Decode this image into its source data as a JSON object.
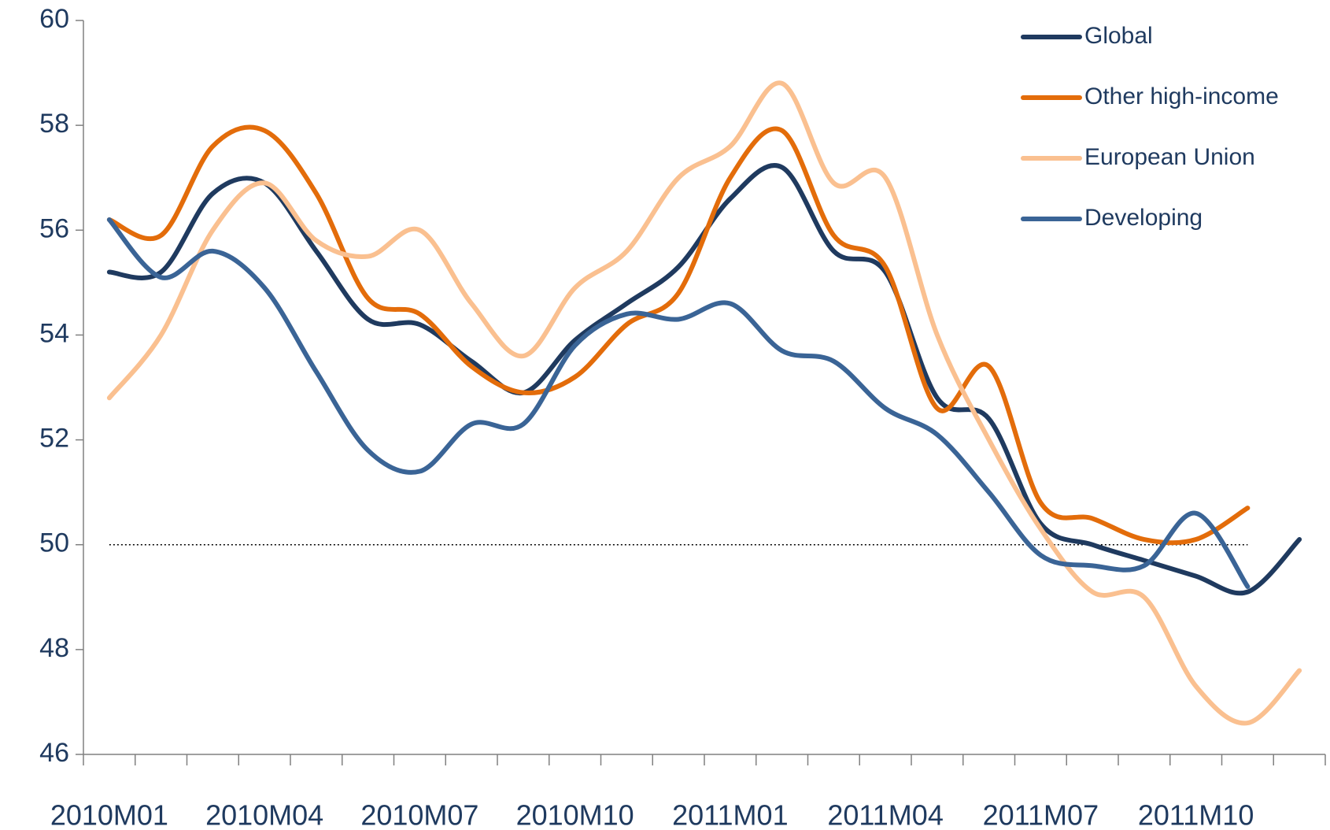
{
  "chart_data": {
    "type": "line",
    "categories": [
      "2010M01",
      null,
      null,
      "2010M04",
      null,
      null,
      "2010M07",
      null,
      null,
      "2010M10",
      null,
      null,
      "2011M01",
      null,
      null,
      "2011M04",
      null,
      null,
      "2011M07",
      null,
      null,
      "2011M10",
      null,
      null
    ],
    "series": [
      {
        "name": "Global",
        "color": "#1f3a5f",
        "values": [
          55.2,
          55.2,
          56.7,
          56.9,
          55.6,
          54.3,
          54.2,
          53.5,
          52.9,
          53.9,
          54.6,
          55.3,
          56.6,
          57.2,
          55.6,
          55.2,
          52.8,
          52.4,
          50.4,
          50.0,
          49.7,
          49.4,
          49.1,
          50.1
        ]
      },
      {
        "name": "Other high-income",
        "color": "#e36c0a",
        "values": [
          56.2,
          55.9,
          57.6,
          57.9,
          56.7,
          54.7,
          54.4,
          53.4,
          52.9,
          53.2,
          54.2,
          54.8,
          57.0,
          57.9,
          55.9,
          55.3,
          52.6,
          53.4,
          50.8,
          50.5,
          50.1,
          50.1,
          50.7,
          null
        ]
      },
      {
        "name": "European Union",
        "color": "#fac090",
        "values": [
          52.8,
          54.0,
          56.0,
          56.9,
          55.8,
          55.5,
          56.0,
          54.6,
          53.6,
          54.9,
          55.6,
          57.0,
          57.6,
          58.8,
          56.9,
          57.0,
          54.0,
          52.0,
          50.3,
          49.1,
          49.0,
          47.3,
          46.6,
          47.6
        ]
      },
      {
        "name": "Developing",
        "color": "#3a6496",
        "values": [
          56.2,
          55.1,
          55.6,
          54.9,
          53.3,
          51.8,
          51.4,
          52.3,
          52.3,
          53.8,
          54.4,
          54.3,
          54.6,
          53.7,
          53.5,
          52.6,
          52.1,
          51.0,
          49.8,
          49.6,
          49.6,
          50.6,
          49.2,
          null
        ]
      }
    ],
    "ylim": [
      46,
      60
    ],
    "yticks": [
      46,
      48,
      50,
      52,
      54,
      56,
      58,
      60
    ],
    "reference_line": 50,
    "legend": "top-right"
  }
}
